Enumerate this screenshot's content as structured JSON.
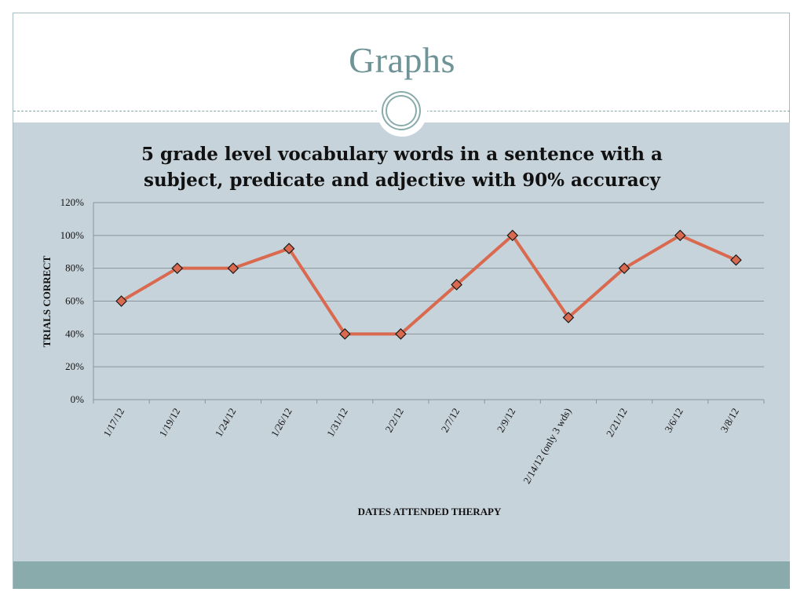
{
  "slide": {
    "title": "Graphs"
  },
  "colors": {
    "title": "#6f9396",
    "content_background": "#c7d3da",
    "footer": "#8aabab",
    "series_line": "#d9694f",
    "marker_stroke": "#1a1a1a",
    "gridline": "#8a959b"
  },
  "chart_data": {
    "type": "line",
    "title_lines": [
      "5 grade level vocabulary words in a sentence with a",
      "subject, predicate and adjective with 90% accuracy"
    ],
    "xlabel": "DATES ATTENDED THERAPY",
    "ylabel": "TRIALS CORRECT",
    "ylim": [
      0,
      120
    ],
    "y_ticks": [
      "0%",
      "20%",
      "40%",
      "60%",
      "80%",
      "100%",
      "120%"
    ],
    "grid": true,
    "legend": "none",
    "marker": "diamond",
    "categories": [
      "1/17/12",
      "1/19/12",
      "1/24/12",
      "1/26/12",
      "1/31/12",
      "2/2/12",
      "2/7/12",
      "2/9/12",
      "2/14/12 (only 3 wds)",
      "2/21/12",
      "3/6/12",
      "3/8/12"
    ],
    "values": [
      60,
      80,
      80,
      92,
      40,
      40,
      70,
      100,
      50,
      80,
      100,
      85
    ]
  }
}
